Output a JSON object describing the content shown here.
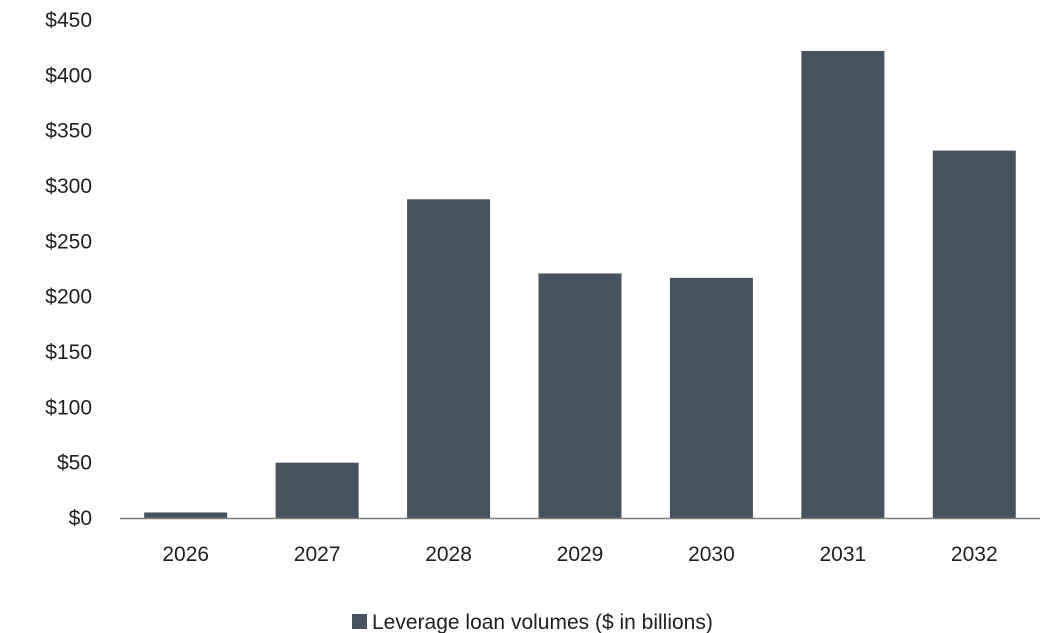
{
  "chart_data": {
    "type": "bar",
    "title": "",
    "xlabel": "",
    "ylabel": "",
    "categories": [
      "2026",
      "2027",
      "2028",
      "2029",
      "2030",
      "2031",
      "2032"
    ],
    "series": [
      {
        "name": "Leverage loan volumes ($ in billions)",
        "values": [
          5,
          50,
          288,
          221,
          217,
          422,
          332
        ],
        "color": "#46525f"
      }
    ],
    "ylim": [
      0,
      450
    ],
    "y_ticks": [
      0,
      50,
      100,
      150,
      200,
      250,
      300,
      350,
      400,
      450
    ],
    "y_tick_labels": [
      "$0",
      "$50",
      "$100",
      "$150",
      "$200",
      "$250",
      "$300",
      "$350",
      "$400",
      "$450"
    ],
    "grid": false,
    "legend_position": "bottom-center",
    "axis_color": "#7f7f7f"
  }
}
